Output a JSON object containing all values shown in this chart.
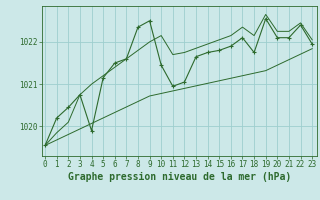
{
  "title": "Graphe pression niveau de la mer (hPa)",
  "bg_color": "#cce8e8",
  "grid_color": "#9ecece",
  "line_color": "#2d6a2d",
  "x_ticks": [
    0,
    1,
    2,
    3,
    4,
    5,
    6,
    7,
    8,
    9,
    10,
    11,
    12,
    13,
    14,
    15,
    16,
    17,
    18,
    19,
    20,
    21,
    22,
    23
  ],
  "y_ticks": [
    1020,
    1021,
    1022
  ],
  "ylim": [
    1019.3,
    1022.85
  ],
  "xlim": [
    -0.3,
    23.4
  ],
  "main_line": [
    1019.55,
    1020.2,
    1020.45,
    1020.75,
    1019.9,
    1021.15,
    1021.5,
    1021.6,
    1022.35,
    1022.5,
    1021.45,
    1020.95,
    1021.05,
    1021.65,
    1021.75,
    1021.8,
    1021.9,
    1022.1,
    1021.75,
    1022.55,
    1022.1,
    1022.1,
    1022.4,
    1021.95
  ],
  "lower_envelope": [
    1019.55,
    1019.68,
    1019.81,
    1019.94,
    1020.07,
    1020.2,
    1020.33,
    1020.46,
    1020.59,
    1020.72,
    1020.78,
    1020.84,
    1020.9,
    1020.96,
    1021.02,
    1021.08,
    1021.14,
    1021.2,
    1021.26,
    1021.32,
    1021.45,
    1021.58,
    1021.71,
    1021.84
  ],
  "upper_envelope": [
    1019.55,
    1019.85,
    1020.1,
    1020.75,
    1021.0,
    1021.2,
    1021.4,
    1021.6,
    1021.8,
    1022.0,
    1022.15,
    1021.7,
    1021.75,
    1021.85,
    1021.95,
    1022.05,
    1022.15,
    1022.35,
    1022.15,
    1022.65,
    1022.25,
    1022.25,
    1022.45,
    1022.05
  ],
  "title_fontsize": 7,
  "tick_fontsize": 5.5
}
